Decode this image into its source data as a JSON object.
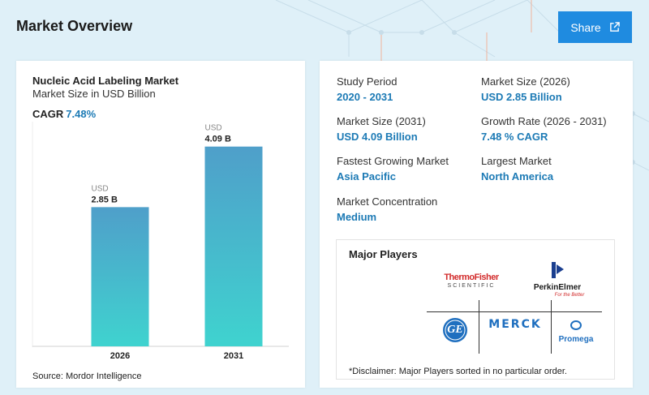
{
  "header": {
    "title": "Market Overview",
    "share_label": "Share"
  },
  "chart": {
    "title": "Nucleic Acid Labeling Market",
    "subtitle": "Market Size in USD Billion",
    "cagr_label": "CAGR",
    "cagr_value": "7.48%",
    "source": "Source: Mordor Intelligence"
  },
  "chart_data": {
    "type": "bar",
    "title": "Nucleic Acid Labeling Market",
    "subtitle": "Market Size in USD Billion",
    "categories": [
      "2026",
      "2031"
    ],
    "values": [
      2.85,
      4.09
    ],
    "value_labels": [
      "2.85 B",
      "4.09 B"
    ],
    "value_prefix": "USD",
    "ylim": [
      0,
      4.6
    ],
    "grid": false,
    "bar_gradient": [
      "#4f9fca",
      "#3fd3cf"
    ]
  },
  "stats": [
    {
      "label": "Study Period",
      "value": "2020 - 2031"
    },
    {
      "label": "Market Size (2026)",
      "value": "USD 2.85 Billion"
    },
    {
      "label": "Market Size (2031)",
      "value": "USD 4.09 Billion"
    },
    {
      "label": "Growth Rate (2026 - 2031)",
      "value": "7.48 % CAGR"
    },
    {
      "label": "Fastest Growing Market",
      "value": "Asia Pacific"
    },
    {
      "label": "Largest Market",
      "value": "North America"
    },
    {
      "label": "Market Concentration",
      "value": "Medium"
    }
  ],
  "players": {
    "title": "Major Players",
    "logos": {
      "thermo_line1": "ThermoFisher",
      "thermo_line2": "SCIENTIFIC",
      "perkin_name": "PerkinElmer",
      "perkin_tagline": "For the Better",
      "merck": "MERCK",
      "promega": "Promega",
      "ge": "GE"
    },
    "disclaimer": "*Disclaimer: Major Players sorted in no particular order."
  },
  "colors": {
    "accent": "#1c7ab5",
    "share_button": "#1f8be0",
    "header_bg": "#dff0f8"
  }
}
